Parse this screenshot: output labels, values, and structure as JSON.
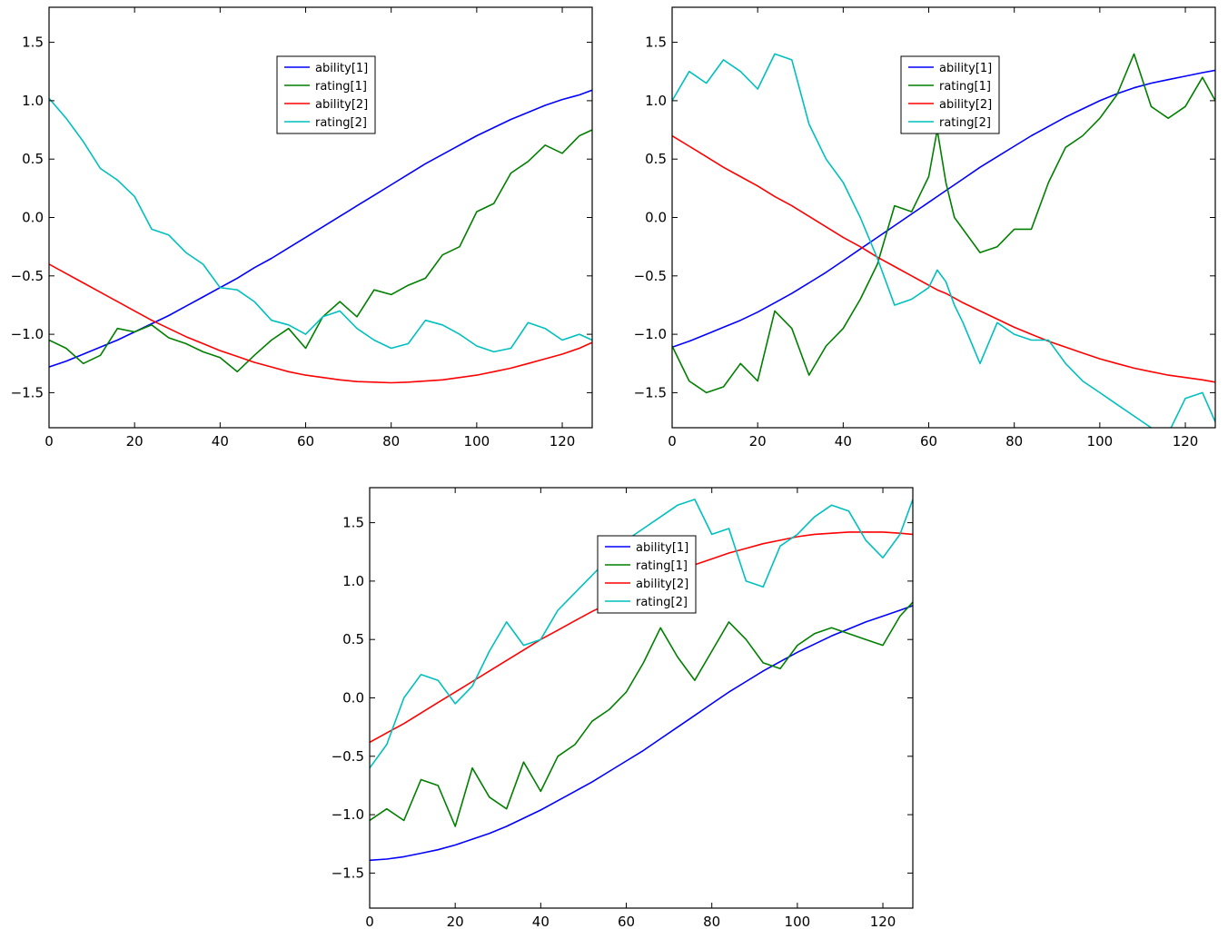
{
  "colors": {
    "ability_1": "#0000ff",
    "rating_1": "#007f00",
    "ability_2": "#ff0000",
    "rating_2": "#00bfbf"
  },
  "chart_data": [
    {
      "type": "line",
      "title": "",
      "xlabel": "",
      "ylabel": "",
      "xlim": [
        0,
        127
      ],
      "ylim": [
        -1.8,
        1.8
      ],
      "x_ticks": [
        0,
        20,
        40,
        60,
        80,
        100,
        120
      ],
      "y_ticks": [
        -1.5,
        -1.0,
        -0.5,
        0.0,
        0.5,
        1.0,
        1.5
      ],
      "grid": false,
      "legend_position": "upper-center",
      "x": [
        0,
        4,
        8,
        12,
        16,
        20,
        24,
        28,
        32,
        36,
        40,
        44,
        48,
        52,
        56,
        60,
        64,
        68,
        72,
        76,
        80,
        84,
        88,
        92,
        96,
        100,
        104,
        108,
        112,
        116,
        120,
        124,
        127
      ],
      "series": [
        {
          "name": "ability[1]",
          "color_key": "ability_1",
          "values": [
            -1.28,
            -1.23,
            -1.17,
            -1.11,
            -1.05,
            -0.98,
            -0.91,
            -0.84,
            -0.76,
            -0.68,
            -0.6,
            -0.52,
            -0.43,
            -0.35,
            -0.26,
            -0.17,
            -0.08,
            0.01,
            0.1,
            0.19,
            0.28,
            0.37,
            0.46,
            0.54,
            0.62,
            0.7,
            0.77,
            0.84,
            0.9,
            0.96,
            1.01,
            1.05,
            1.09
          ]
        },
        {
          "name": "rating[1]",
          "color_key": "rating_1",
          "values": [
            -1.05,
            -1.12,
            -1.25,
            -1.18,
            -0.95,
            -0.98,
            -0.92,
            -1.03,
            -1.08,
            -1.15,
            -1.2,
            -1.32,
            -1.18,
            -1.05,
            -0.95,
            -1.12,
            -0.85,
            -0.72,
            -0.85,
            -0.62,
            -0.66,
            -0.58,
            -0.52,
            -0.32,
            -0.25,
            0.05,
            0.12,
            0.38,
            0.48,
            0.62,
            0.55,
            0.7,
            0.75
          ]
        },
        {
          "name": "ability[2]",
          "color_key": "ability_2",
          "values": [
            -0.4,
            -0.48,
            -0.56,
            -0.64,
            -0.72,
            -0.8,
            -0.88,
            -0.95,
            -1.02,
            -1.08,
            -1.14,
            -1.19,
            -1.24,
            -1.28,
            -1.32,
            -1.35,
            -1.37,
            -1.39,
            -1.405,
            -1.41,
            -1.415,
            -1.41,
            -1.4,
            -1.39,
            -1.37,
            -1.35,
            -1.32,
            -1.29,
            -1.25,
            -1.21,
            -1.17,
            -1.12,
            -1.07
          ]
        },
        {
          "name": "rating[2]",
          "color_key": "rating_2",
          "values": [
            1.02,
            0.85,
            0.65,
            0.42,
            0.32,
            0.18,
            -0.1,
            -0.15,
            -0.3,
            -0.4,
            -0.6,
            -0.62,
            -0.72,
            -0.88,
            -0.92,
            -1.0,
            -0.85,
            -0.8,
            -0.95,
            -1.05,
            -1.12,
            -1.08,
            -0.88,
            -0.92,
            -1.0,
            -1.1,
            -1.15,
            -1.12,
            -0.9,
            -0.95,
            -1.05,
            -1.0,
            -1.05
          ]
        }
      ]
    },
    {
      "type": "line",
      "title": "",
      "xlabel": "",
      "ylabel": "",
      "xlim": [
        0,
        127
      ],
      "ylim": [
        -1.8,
        1.8
      ],
      "x_ticks": [
        0,
        20,
        40,
        60,
        80,
        100,
        120
      ],
      "y_ticks": [
        -1.5,
        -1.0,
        -0.5,
        0.0,
        0.5,
        1.0,
        1.5
      ],
      "grid": false,
      "legend_position": "upper-right",
      "x": [
        0,
        4,
        8,
        12,
        16,
        20,
        24,
        28,
        32,
        36,
        40,
        44,
        48,
        52,
        56,
        60,
        62,
        64,
        66,
        68,
        72,
        76,
        80,
        84,
        88,
        92,
        96,
        100,
        104,
        108,
        112,
        116,
        120,
        124,
        127
      ],
      "series": [
        {
          "name": "ability[1]",
          "color_key": "ability_1",
          "values": [
            -1.11,
            -1.06,
            -1.0,
            -0.94,
            -0.88,
            -0.81,
            -0.73,
            -0.65,
            -0.56,
            -0.47,
            -0.37,
            -0.27,
            -0.17,
            -0.07,
            0.03,
            0.13,
            0.18,
            0.23,
            0.28,
            0.33,
            0.43,
            0.52,
            0.61,
            0.7,
            0.78,
            0.86,
            0.93,
            1.0,
            1.06,
            1.11,
            1.15,
            1.18,
            1.21,
            1.24,
            1.26
          ]
        },
        {
          "name": "rating[1]",
          "color_key": "rating_1",
          "values": [
            -1.1,
            -1.4,
            -1.5,
            -1.45,
            -1.25,
            -1.4,
            -0.8,
            -0.95,
            -1.35,
            -1.1,
            -0.95,
            -0.7,
            -0.4,
            0.1,
            0.05,
            0.35,
            0.75,
            0.3,
            0.0,
            -0.1,
            -0.3,
            -0.25,
            -0.1,
            -0.1,
            0.3,
            0.6,
            0.7,
            0.85,
            1.05,
            1.4,
            0.95,
            0.85,
            0.95,
            1.2,
            1.0
          ]
        },
        {
          "name": "ability[2]",
          "color_key": "ability_2",
          "values": [
            0.7,
            0.61,
            0.52,
            0.43,
            0.35,
            0.27,
            0.18,
            0.1,
            0.01,
            -0.08,
            -0.17,
            -0.25,
            -0.34,
            -0.42,
            -0.5,
            -0.58,
            -0.62,
            -0.65,
            -0.69,
            -0.73,
            -0.8,
            -0.87,
            -0.94,
            -1.0,
            -1.06,
            -1.11,
            -1.16,
            -1.21,
            -1.25,
            -1.29,
            -1.32,
            -1.35,
            -1.37,
            -1.39,
            -1.41
          ]
        },
        {
          "name": "rating[2]",
          "color_key": "rating_2",
          "values": [
            1.0,
            1.25,
            1.15,
            1.35,
            1.25,
            1.1,
            1.4,
            1.35,
            0.8,
            0.5,
            0.3,
            0.0,
            -0.35,
            -0.75,
            -0.7,
            -0.6,
            -0.45,
            -0.55,
            -0.75,
            -0.9,
            -1.25,
            -0.9,
            -1.0,
            -1.05,
            -1.05,
            -1.25,
            -1.4,
            -1.5,
            -1.6,
            -1.7,
            -1.8,
            -1.85,
            -1.55,
            -1.5,
            -1.75
          ]
        }
      ]
    },
    {
      "type": "line",
      "title": "",
      "xlabel": "",
      "ylabel": "",
      "xlim": [
        0,
        127
      ],
      "ylim": [
        -1.8,
        1.8
      ],
      "x_ticks": [
        0,
        20,
        40,
        60,
        80,
        100,
        120
      ],
      "y_ticks": [
        -1.5,
        -1.0,
        -0.5,
        0.0,
        0.5,
        1.0,
        1.5
      ],
      "grid": false,
      "legend_position": "upper-center",
      "x": [
        0,
        4,
        8,
        12,
        16,
        20,
        24,
        28,
        32,
        36,
        40,
        44,
        48,
        52,
        56,
        60,
        64,
        68,
        72,
        76,
        80,
        84,
        88,
        92,
        96,
        100,
        104,
        108,
        112,
        116,
        120,
        124,
        127
      ],
      "series": [
        {
          "name": "ability[1]",
          "color_key": "ability_1",
          "values": [
            -1.39,
            -1.38,
            -1.36,
            -1.33,
            -1.3,
            -1.26,
            -1.21,
            -1.16,
            -1.1,
            -1.03,
            -0.96,
            -0.88,
            -0.8,
            -0.72,
            -0.63,
            -0.54,
            -0.45,
            -0.35,
            -0.25,
            -0.15,
            -0.05,
            0.05,
            0.14,
            0.23,
            0.31,
            0.39,
            0.46,
            0.53,
            0.59,
            0.65,
            0.7,
            0.75,
            0.79
          ]
        },
        {
          "name": "rating[1]",
          "color_key": "rating_1",
          "values": [
            -1.05,
            -0.95,
            -1.05,
            -0.7,
            -0.75,
            -1.1,
            -0.6,
            -0.85,
            -0.95,
            -0.55,
            -0.8,
            -0.5,
            -0.4,
            -0.2,
            -0.1,
            0.05,
            0.3,
            0.6,
            0.35,
            0.15,
            0.4,
            0.65,
            0.5,
            0.3,
            0.25,
            0.45,
            0.55,
            0.6,
            0.55,
            0.5,
            0.45,
            0.7,
            0.82
          ]
        },
        {
          "name": "ability[2]",
          "color_key": "ability_2",
          "values": [
            -0.38,
            -0.3,
            -0.22,
            -0.13,
            -0.04,
            0.05,
            0.14,
            0.23,
            0.32,
            0.41,
            0.5,
            0.58,
            0.66,
            0.74,
            0.81,
            0.88,
            0.95,
            1.02,
            1.08,
            1.14,
            1.19,
            1.24,
            1.28,
            1.32,
            1.35,
            1.38,
            1.4,
            1.41,
            1.42,
            1.42,
            1.42,
            1.41,
            1.4
          ]
        },
        {
          "name": "rating[2]",
          "color_key": "rating_2",
          "values": [
            -0.6,
            -0.4,
            0.0,
            0.2,
            0.15,
            -0.05,
            0.1,
            0.4,
            0.65,
            0.45,
            0.5,
            0.75,
            0.9,
            1.05,
            1.2,
            1.35,
            1.45,
            1.55,
            1.65,
            1.7,
            1.4,
            1.45,
            1.0,
            0.95,
            1.3,
            1.4,
            1.55,
            1.65,
            1.6,
            1.35,
            1.2,
            1.4,
            1.7
          ]
        }
      ]
    }
  ]
}
